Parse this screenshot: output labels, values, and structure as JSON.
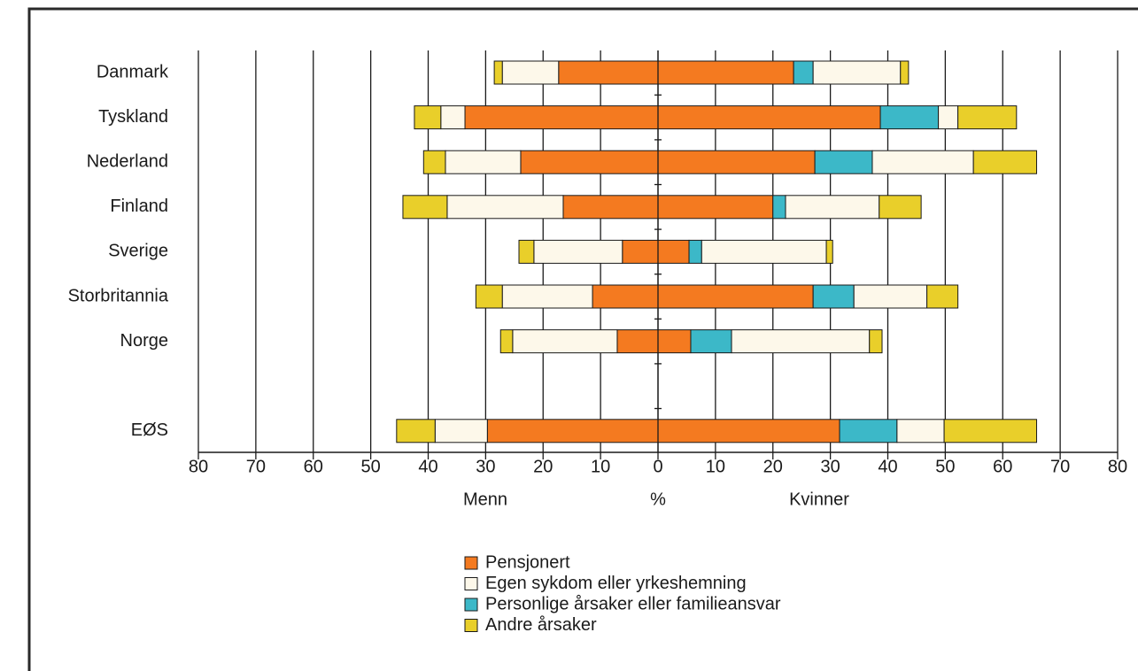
{
  "chart_data": {
    "type": "butterfly-stacked-bar",
    "categories": [
      "Danmark",
      "Tyskland",
      "Nederland",
      "Finland",
      "Sverige",
      "Storbritannia",
      "Norge",
      null,
      "EØS"
    ],
    "left_label": "Menn",
    "center_label": "%",
    "right_label": "Kvinner",
    "series": [
      {
        "name": "Pensjonert",
        "color": "#f47a20",
        "values_left": [
          17.3,
          33.6,
          23.9,
          16.5,
          6.2,
          11.4,
          7.1,
          null,
          29.7
        ],
        "values_right": [
          23.6,
          38.7,
          27.3,
          20.0,
          5.4,
          27.0,
          5.7,
          null,
          31.6
        ]
      },
      {
        "name": "Egen sykdom eller yrkeshemning",
        "color": "#fdf8ea",
        "values_left": [
          9.8,
          4.2,
          13.1,
          20.2,
          15.4,
          15.7,
          18.2,
          null,
          9.1
        ],
        "values_right": [
          15.2,
          3.4,
          17.6,
          16.3,
          21.7,
          12.7,
          24.0,
          null,
          8.2
        ]
      },
      {
        "name": "Personlige årsaker eller familieansvar",
        "color": "#3cb8c8",
        "values_left": [
          0,
          0,
          0,
          0,
          0,
          0,
          0,
          null,
          0
        ],
        "values_right": [
          3.4,
          10.1,
          10.0,
          2.2,
          2.2,
          7.1,
          7.1,
          null,
          10.0
        ]
      },
      {
        "name": "Andre årsaker",
        "color": "#e9cf2a",
        "values_left": [
          1.4,
          4.6,
          3.8,
          7.7,
          2.6,
          4.6,
          2.1,
          null,
          6.7
        ],
        "values_right": [
          1.4,
          10.2,
          11.0,
          7.3,
          1.1,
          5.4,
          2.2,
          null,
          16.1
        ]
      }
    ],
    "xlim": [
      -80,
      80
    ],
    "xticks": [
      {
        "value": -80,
        "label": "80"
      },
      {
        "value": -70,
        "label": "70"
      },
      {
        "value": -60,
        "label": "60"
      },
      {
        "value": -50,
        "label": "50"
      },
      {
        "value": -40,
        "label": "40"
      },
      {
        "value": -30,
        "label": "30"
      },
      {
        "value": -20,
        "label": "20"
      },
      {
        "value": -10,
        "label": "10"
      },
      0,
      10,
      20,
      30,
      40,
      50,
      60,
      70,
      80
    ],
    "grid": true
  }
}
